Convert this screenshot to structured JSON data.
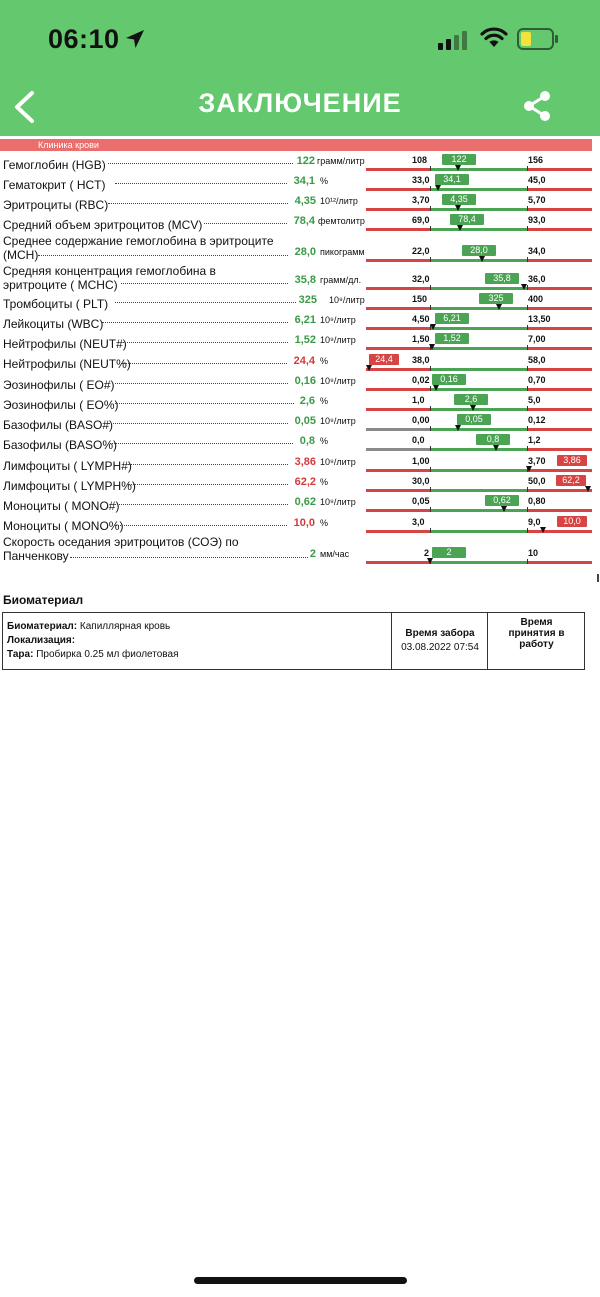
{
  "status": {
    "time": "06:10"
  },
  "header": {
    "title": "ЗАКЛЮЧЕНИЕ"
  },
  "section": {
    "title": "Клиника крови"
  },
  "rows": [
    {
      "label1": "Гемоглобин (HGB)",
      "label2": "",
      "value": "122",
      "unit": "грамм/литр",
      "status": "normal",
      "ref_low": "108",
      "ref_high": "156",
      "badge": "122",
      "badge_pos": "inside"
    },
    {
      "label1": "Гематокрит ( HCT)",
      "label2": "",
      "value": "34,1",
      "unit": "%",
      "status": "normal",
      "ref_low": "33,0",
      "ref_high": "45,0",
      "badge": "34,1",
      "badge_pos": "inside"
    },
    {
      "label1": "Эритроциты (RBC)",
      "label2": "",
      "value": "4,35",
      "unit": "10¹²/литр",
      "status": "normal",
      "ref_low": "3,70",
      "ref_high": "5,70",
      "badge": "4,35",
      "badge_pos": "inside"
    },
    {
      "label1": "Средний объем эритроцитов (MCV)",
      "label2": "",
      "value": "78,4",
      "unit": "фемтолитр",
      "status": "normal",
      "ref_low": "69,0",
      "ref_high": "93,0",
      "badge": "78,4",
      "badge_pos": "inside"
    },
    {
      "label1": "Среднее содержание гемоглобина в эритроците",
      "label2": "(MCH)",
      "value": "28,0",
      "unit": "пикограмм",
      "status": "normal",
      "ref_low": "22,0",
      "ref_high": "34,0",
      "badge": "28,0",
      "badge_pos": "inside"
    },
    {
      "label1": "Средняя концентрация гемоглобина в",
      "label2": "эритроците ( MCHC)",
      "value": "35,8",
      "unit": "грамм/дл.",
      "status": "normal",
      "ref_low": "32,0",
      "ref_high": "36,0",
      "badge": "35,8",
      "badge_pos": "inside"
    },
    {
      "label1": "Тромбоциты ( PLT)",
      "label2": "",
      "value": "325",
      "unit": "10⁹/литр",
      "status": "normal",
      "ref_low": "150",
      "ref_high": "400",
      "badge": "325",
      "badge_pos": "inside"
    },
    {
      "label1": "Лейкоциты (WBC)",
      "label2": "",
      "value": "6,21",
      "unit": "10⁹/литр",
      "status": "normal",
      "ref_low": "4,50",
      "ref_high": "13,50",
      "badge": "6,21",
      "badge_pos": "inside"
    },
    {
      "label1": "Нейтрофилы (NEUT#)",
      "label2": "",
      "value": "1,52",
      "unit": "10⁹/литр",
      "status": "normal",
      "ref_low": "1,50",
      "ref_high": "7,00",
      "badge": "1,52",
      "badge_pos": "inside"
    },
    {
      "label1": "Нейтрофилы (NEUT%)",
      "label2": "",
      "value": "24,4",
      "unit": "%",
      "status": "low",
      "ref_low": "38,0",
      "ref_high": "58,0",
      "badge": "24,4",
      "badge_pos": "below"
    },
    {
      "label1": "Эозинофилы ( EO#)",
      "label2": "",
      "value": "0,16",
      "unit": "10⁹/литр",
      "status": "normal",
      "ref_low": "0,02",
      "ref_high": "0,70",
      "badge": "0,16",
      "badge_pos": "inside"
    },
    {
      "label1": "Эозинофилы ( EO%)",
      "label2": "",
      "value": "2,6",
      "unit": "%",
      "status": "normal",
      "ref_low": "1,0",
      "ref_high": "5,0",
      "badge": "2,6",
      "badge_pos": "inside"
    },
    {
      "label1": "Базофилы (BASO#)",
      "label2": "",
      "value": "0,05",
      "unit": "10⁹/литр",
      "status": "normal",
      "ref_low": "0,00",
      "ref_high": "0,12",
      "badge": "0,05",
      "badge_pos": "inside"
    },
    {
      "label1": "Базофилы (BASO%)",
      "label2": "",
      "value": "0,8",
      "unit": "%",
      "status": "normal",
      "ref_low": "0,0",
      "ref_high": "1,2",
      "badge": "0,8",
      "badge_pos": "inside"
    },
    {
      "label1": "Лимфоциты ( LYMPH#)",
      "label2": "",
      "value": "3,86",
      "unit": "10⁹/литр",
      "status": "high",
      "ref_low": "1,00",
      "ref_high": "3,70",
      "badge": "3,86",
      "badge_pos": "above"
    },
    {
      "label1": "Лимфоциты ( LYMPH%)",
      "label2": "",
      "value": "62,2",
      "unit": "%",
      "status": "high",
      "ref_low": "30,0",
      "ref_high": "50,0",
      "badge": "62,2",
      "badge_pos": "above"
    },
    {
      "label1": "Моноциты ( MONO#)",
      "label2": "",
      "value": "0,62",
      "unit": "10⁹/литр",
      "status": "normal",
      "ref_low": "0,05",
      "ref_high": "0,80",
      "badge": "0,62",
      "badge_pos": "inside"
    },
    {
      "label1": "Моноциты ( MONO%)",
      "label2": "",
      "value": "10,0",
      "unit": "%",
      "status": "high",
      "ref_low": "3,0",
      "ref_high": "9,0",
      "badge": "10,0",
      "badge_pos": "above"
    },
    {
      "label1": "Скорость оседания эритроцитов (СОЭ) по",
      "label2": "Панченкову",
      "value": "2",
      "unit": "мм/час",
      "status": "normal",
      "ref_low": "2",
      "ref_high": "10",
      "badge": "2",
      "badge_pos": "inside"
    }
  ],
  "biomaterial": {
    "title": "Биоматериал",
    "material_label": "Биоматериал:",
    "material_value": "Капиллярная кровь",
    "localization_label": "Локализация:",
    "localization_value": "",
    "tara_label": "Тара:",
    "tara_value": "Пробирка 0.25 мл фиолетовая",
    "collect_header": "Время забора",
    "collect_value": "03.08.2022 07:54",
    "accept_header_1": "Время",
    "accept_header_2": "принятия в",
    "accept_header_3": "работу"
  }
}
